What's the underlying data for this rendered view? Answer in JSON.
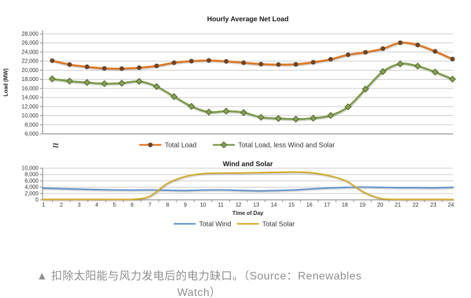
{
  "page": {
    "caption": "▲ 扣除太阳能与风力发电后的电力缺口。（Source：Renewables Watch）"
  },
  "colors": {
    "gridline": "#c9c9c9",
    "axis": "#8c8c8c",
    "caption_text": "#8e8e8e"
  },
  "chart_data": [
    {
      "type": "line",
      "title": "Hourly Average Net Load",
      "xlabel": "",
      "ylabel": "Load (MW)",
      "axis_break": "≈",
      "grid": true,
      "legend_position": "bottom",
      "x": [
        1,
        2,
        3,
        4,
        5,
        6,
        7,
        8,
        9,
        10,
        11,
        12,
        13,
        14,
        15,
        16,
        17,
        18,
        19,
        20,
        21,
        22,
        23,
        24
      ],
      "ylim": [
        6000,
        28800
      ],
      "yticks": [
        28000,
        26000,
        24000,
        22000,
        20000,
        18000,
        16000,
        14000,
        12000,
        10000,
        8000,
        6000
      ],
      "series": [
        {
          "name": "Total Load",
          "color": "#e0751c",
          "marker": "circle",
          "marker_color": "#69452a",
          "values": [
            22100,
            21250,
            20750,
            20400,
            20350,
            20550,
            20950,
            21650,
            22000,
            22150,
            21950,
            21650,
            21350,
            21250,
            21300,
            21750,
            22400,
            23400,
            23950,
            24750,
            26050,
            25550,
            24150,
            22450
          ]
        },
        {
          "name": "Total Load, less Wind and Solar",
          "color": "#7d9b49",
          "marker": "diamond",
          "marker_color": "#86a052",
          "marker_border": "#4f6228",
          "values": [
            18100,
            17600,
            17300,
            17050,
            17150,
            17550,
            16400,
            14200,
            12050,
            10800,
            11000,
            10700,
            9650,
            9400,
            9250,
            9450,
            10050,
            11950,
            15850,
            19700,
            21400,
            20900,
            19600,
            18050
          ]
        }
      ]
    },
    {
      "type": "line",
      "title": "Wind and Solar",
      "xlabel": "Time of Day",
      "ylabel": "",
      "grid": true,
      "legend_position": "bottom",
      "x": [
        1,
        2,
        3,
        4,
        5,
        6,
        7,
        8,
        9,
        10,
        11,
        12,
        13,
        14,
        15,
        16,
        17,
        18,
        19,
        20,
        21,
        22,
        23,
        24
      ],
      "ylim": [
        0,
        10000
      ],
      "yticks": [
        10000,
        8000,
        6000,
        4000,
        2000,
        0
      ],
      "series": [
        {
          "name": "Total Wind",
          "color": "#5e93ce",
          "marker": "none",
          "values": [
            3700,
            3550,
            3400,
            3250,
            3150,
            3100,
            3150,
            3050,
            2950,
            3100,
            3150,
            3000,
            2850,
            2950,
            3100,
            3450,
            3750,
            3950,
            4050,
            3950,
            3850,
            3850,
            3800,
            3950
          ]
        },
        {
          "name": "Total Solar",
          "color": "#d4aa26",
          "marker": "none",
          "values": [
            0,
            0,
            0,
            0,
            0,
            100,
            1100,
            5200,
            7400,
            8300,
            8450,
            8500,
            8600,
            8700,
            8800,
            8600,
            7700,
            6000,
            2400,
            350,
            0,
            0,
            0,
            0
          ]
        }
      ]
    }
  ]
}
